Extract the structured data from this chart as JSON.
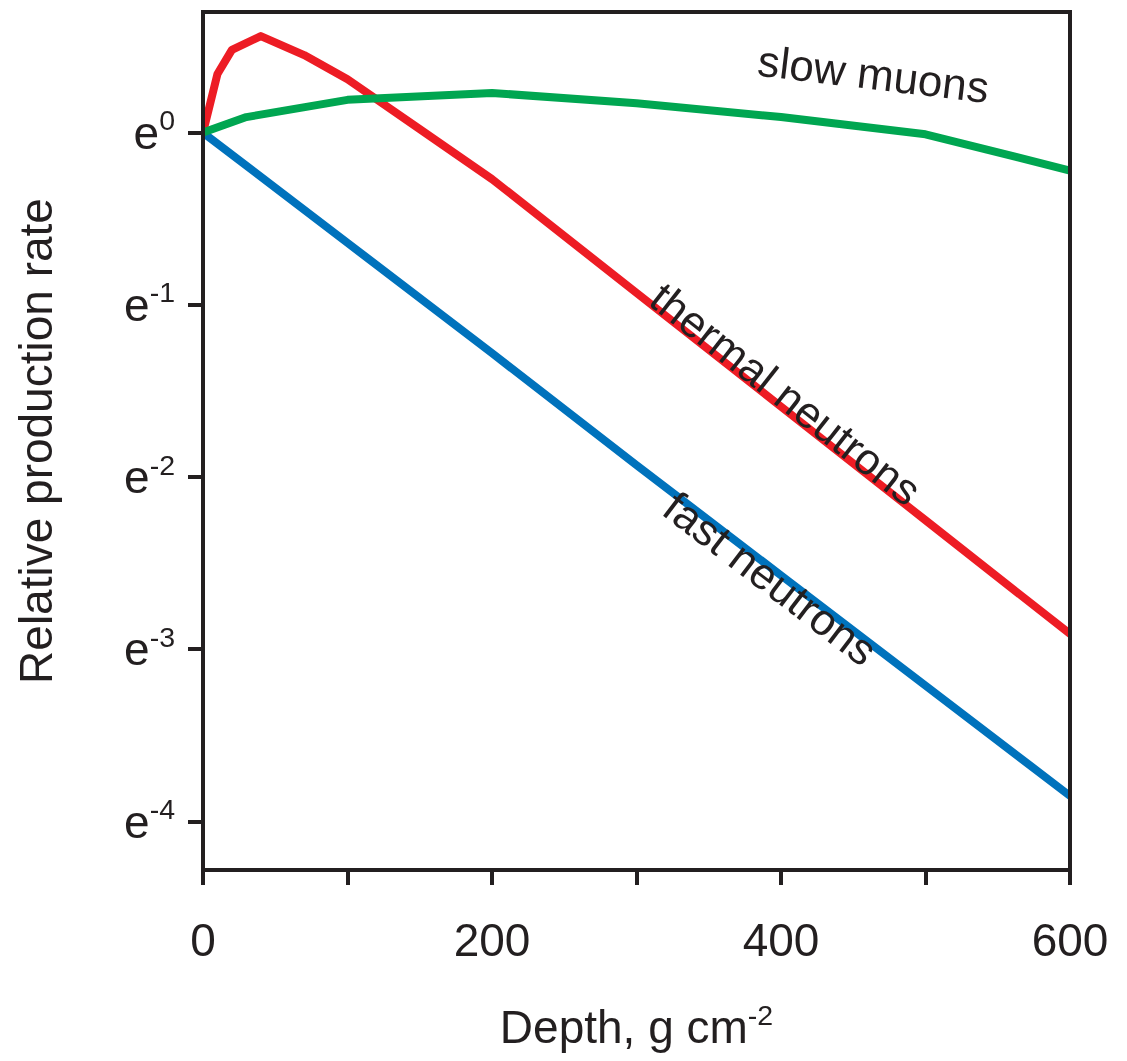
{
  "chart_data": {
    "type": "line",
    "xlabel": "Depth, g cm$^{-2}$",
    "ylabel": "Relative production rate",
    "x": [
      0,
      10,
      20,
      40,
      70,
      100,
      150,
      200,
      300,
      400,
      500,
      600
    ],
    "series": [
      {
        "name": "slow muons",
        "color": "#00a651",
        "x": [
          0,
          30,
          100,
          200,
          300,
          400,
          500,
          600
        ],
        "values": [
          0,
          0.09,
          0.19,
          0.23,
          0.17,
          0.09,
          -0.01,
          -0.22
        ]
      },
      {
        "name": "thermal neutrons",
        "color": "#ed1c24",
        "values": [
          0,
          0.34,
          0.48,
          0.56,
          0.45,
          0.31,
          0.02,
          -0.27,
          -0.93,
          -1.59,
          -2.25,
          -2.91
        ]
      },
      {
        "name": "fast neutrons",
        "color": "#0072bc",
        "x": [
          0,
          100,
          200,
          300,
          400,
          500,
          600
        ],
        "values": [
          0,
          -0.64,
          -1.28,
          -1.93,
          -2.57,
          -3.21,
          -3.85
        ]
      }
    ],
    "xlim": [
      0,
      600
    ],
    "ylim": [
      -4.28,
      0.7
    ],
    "xticks": [
      0,
      {
        "value": 100,
        "label": null
      },
      200,
      {
        "value": 300,
        "label": null
      },
      400,
      {
        "value": 500,
        "label": null
      },
      600
    ],
    "yticks": [
      {
        "value": 0,
        "label": "e$^{0}$"
      },
      {
        "value": -1,
        "label": "e$^{-1}$"
      },
      {
        "value": -2,
        "label": "e$^{-2}$"
      },
      {
        "value": -3,
        "label": "e$^{-3}$"
      },
      {
        "value": -4,
        "label": "e$^{-4}$"
      }
    ],
    "grid": false,
    "legend": false,
    "marker": "none",
    "line_style": "solid"
  }
}
